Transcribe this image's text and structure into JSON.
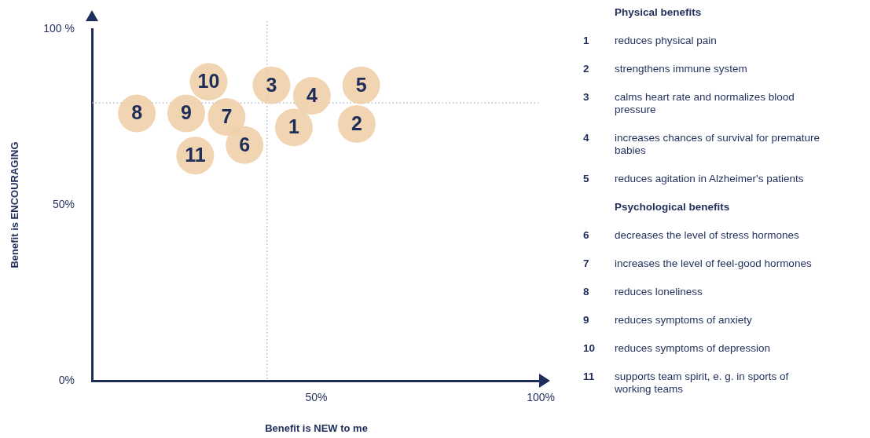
{
  "chart_data": {
    "type": "scatter",
    "xlabel": "Benefit is NEW to me",
    "ylabel": "Benefit is ENCOURAGING",
    "xlim": [
      0,
      100
    ],
    "ylim": [
      0,
      100
    ],
    "xticks": [
      {
        "value": 0,
        "label": null
      },
      {
        "value": 50,
        "label": "50%"
      },
      {
        "value": 100,
        "label": "100%"
      }
    ],
    "yticks": [
      {
        "value": 0,
        "label": "0%"
      },
      {
        "value": 50,
        "label": "50%"
      },
      {
        "value": 100,
        "label": "100 %"
      }
    ],
    "grid": false,
    "marker": "circle",
    "legend": "right",
    "series": [
      {
        "name": "Physical benefits",
        "color": "#efcfa6",
        "x": [
          45,
          59,
          40,
          49,
          60
        ],
        "values": [
          72,
          73,
          84,
          81,
          84
        ]
      },
      {
        "name": "Psychological benefits",
        "color": "#efcfa6",
        "x": [
          34,
          30,
          10,
          21,
          26,
          23
        ],
        "values": [
          67,
          75,
          76,
          76,
          85,
          64
        ]
      }
    ],
    "ref_lines": [
      {
        "axis": "x",
        "value": 39,
        "color": "#a7afc2",
        "line_style": "dotted"
      },
      {
        "axis": "y",
        "value": 79,
        "color": "#a7afc2",
        "line_style": "dotted"
      }
    ],
    "annotations": [
      {
        "text": "1",
        "x": 45,
        "y": 72
      },
      {
        "text": "2",
        "x": 59,
        "y": 73
      },
      {
        "text": "3",
        "x": 40,
        "y": 84
      },
      {
        "text": "4",
        "x": 49,
        "y": 81
      },
      {
        "text": "5",
        "x": 60,
        "y": 84
      },
      {
        "text": "6",
        "x": 34,
        "y": 67
      },
      {
        "text": "7",
        "x": 30,
        "y": 75
      },
      {
        "text": "8",
        "x": 10,
        "y": 76
      },
      {
        "text": "9",
        "x": 21,
        "y": 76
      },
      {
        "text": "10",
        "x": 26,
        "y": 85
      },
      {
        "text": "11",
        "x": 23,
        "y": 64
      },
      "reduces physical pain",
      "strengthens immune system",
      "calms heart rate and normalizes blood pressure",
      "increases chances of survival for premature babies",
      "reduces agitation in Alzheimer's patients",
      "decreases the level of stress hormones",
      "increases the level of feel-good hormones",
      "reduces loneliness",
      "reduces symptoms of anxiety",
      "reduces symptoms of depression",
      "supports team spirit, e. g. in sports of working teams"
    ]
  }
}
